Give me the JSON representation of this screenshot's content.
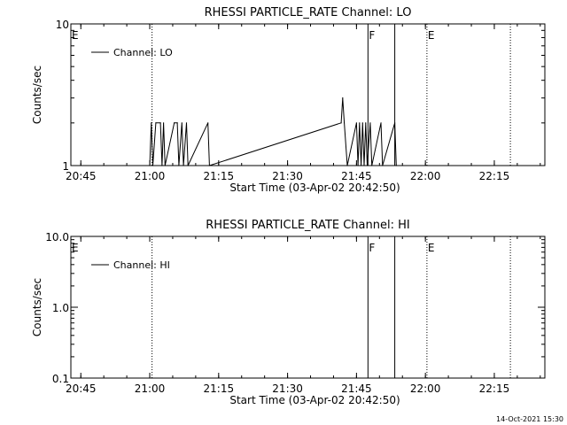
{
  "chart_data": [
    {
      "type": "line",
      "title": "RHESSI PARTICLE_RATE Channel: LO",
      "xlabel": "Start Time (03-Apr-02 20:42:50)",
      "ylabel": "Counts/sec",
      "y_scale": "log",
      "ylim": [
        1,
        10
      ],
      "xlim": [
        "20:42:50",
        "22:26:00"
      ],
      "x_ticks": [
        "20:45",
        "21:00",
        "21:15",
        "21:30",
        "21:45",
        "22:00",
        "22:15"
      ],
      "y_ticks": [
        "1",
        "10"
      ],
      "legend": {
        "entries": [
          "Channel: LO"
        ],
        "position": "top-left"
      },
      "flags": [
        {
          "label": "E",
          "time": "20:42:50",
          "style": "dotted"
        },
        {
          "label": "",
          "time": "21:00:30",
          "style": "dotted"
        },
        {
          "label": "F",
          "time": "21:47:30",
          "style": "solid"
        },
        {
          "label": "",
          "time": "21:53:20",
          "style": "solid"
        },
        {
          "label": "E",
          "time": "22:00:20",
          "style": "dotted"
        },
        {
          "label": "",
          "time": "22:18:30",
          "style": "dotted"
        }
      ],
      "series": [
        {
          "name": "Channel: LO",
          "points": [
            [
              "21:00:00",
              1
            ],
            [
              "21:00:20",
              2
            ],
            [
              "21:00:40",
              1
            ],
            [
              "21:01:20",
              2
            ],
            [
              "21:02:20",
              2
            ],
            [
              "21:02:40",
              1
            ],
            [
              "21:03:00",
              2
            ],
            [
              "21:03:20",
              1
            ],
            [
              "21:05:20",
              2
            ],
            [
              "21:06:00",
              2
            ],
            [
              "21:06:20",
              1
            ],
            [
              "21:07:00",
              2
            ],
            [
              "21:07:20",
              1
            ],
            [
              "21:08:00",
              2
            ],
            [
              "21:08:20",
              1
            ],
            [
              "21:12:40",
              2
            ],
            [
              "21:13:00",
              1
            ],
            [
              "21:41:40",
              2
            ],
            [
              "21:42:00",
              3
            ],
            [
              "21:42:20",
              2
            ],
            [
              "21:43:00",
              1
            ],
            [
              "21:45:00",
              2
            ],
            [
              "21:45:20",
              1
            ],
            [
              "21:45:40",
              2
            ],
            [
              "21:46:00",
              1
            ],
            [
              "21:46:20",
              2
            ],
            [
              "21:46:40",
              1
            ],
            [
              "21:47:00",
              2
            ],
            [
              "21:47:20",
              1
            ],
            [
              "21:48:00",
              2
            ],
            [
              "21:48:20",
              1
            ],
            [
              "21:50:20",
              2
            ],
            [
              "21:50:40",
              1
            ],
            [
              "21:53:20",
              2
            ],
            [
              "21:53:40",
              1
            ]
          ]
        }
      ]
    },
    {
      "type": "line",
      "title": "RHESSI PARTICLE_RATE Channel: HI",
      "xlabel": "Start Time (03-Apr-02 20:42:50)",
      "ylabel": "Counts/sec",
      "y_scale": "log",
      "ylim": [
        0.1,
        10
      ],
      "xlim": [
        "20:42:50",
        "22:26:00"
      ],
      "x_ticks": [
        "20:45",
        "21:00",
        "21:15",
        "21:30",
        "21:45",
        "22:00",
        "22:15"
      ],
      "y_ticks": [
        "0.1",
        "1.0",
        "10.0"
      ],
      "legend": {
        "entries": [
          "Channel: HI"
        ],
        "position": "top-left"
      },
      "flags": [
        {
          "label": "E",
          "time": "20:42:50",
          "style": "dotted"
        },
        {
          "label": "",
          "time": "21:00:30",
          "style": "dotted"
        },
        {
          "label": "F",
          "time": "21:47:30",
          "style": "solid"
        },
        {
          "label": "",
          "time": "21:53:20",
          "style": "solid"
        },
        {
          "label": "E",
          "time": "22:00:20",
          "style": "dotted"
        },
        {
          "label": "",
          "time": "22:18:30",
          "style": "dotted"
        }
      ],
      "series": [
        {
          "name": "Channel: HI",
          "points": []
        }
      ]
    }
  ],
  "footer": {
    "timestamp": "14-Oct-2021 15:30"
  }
}
